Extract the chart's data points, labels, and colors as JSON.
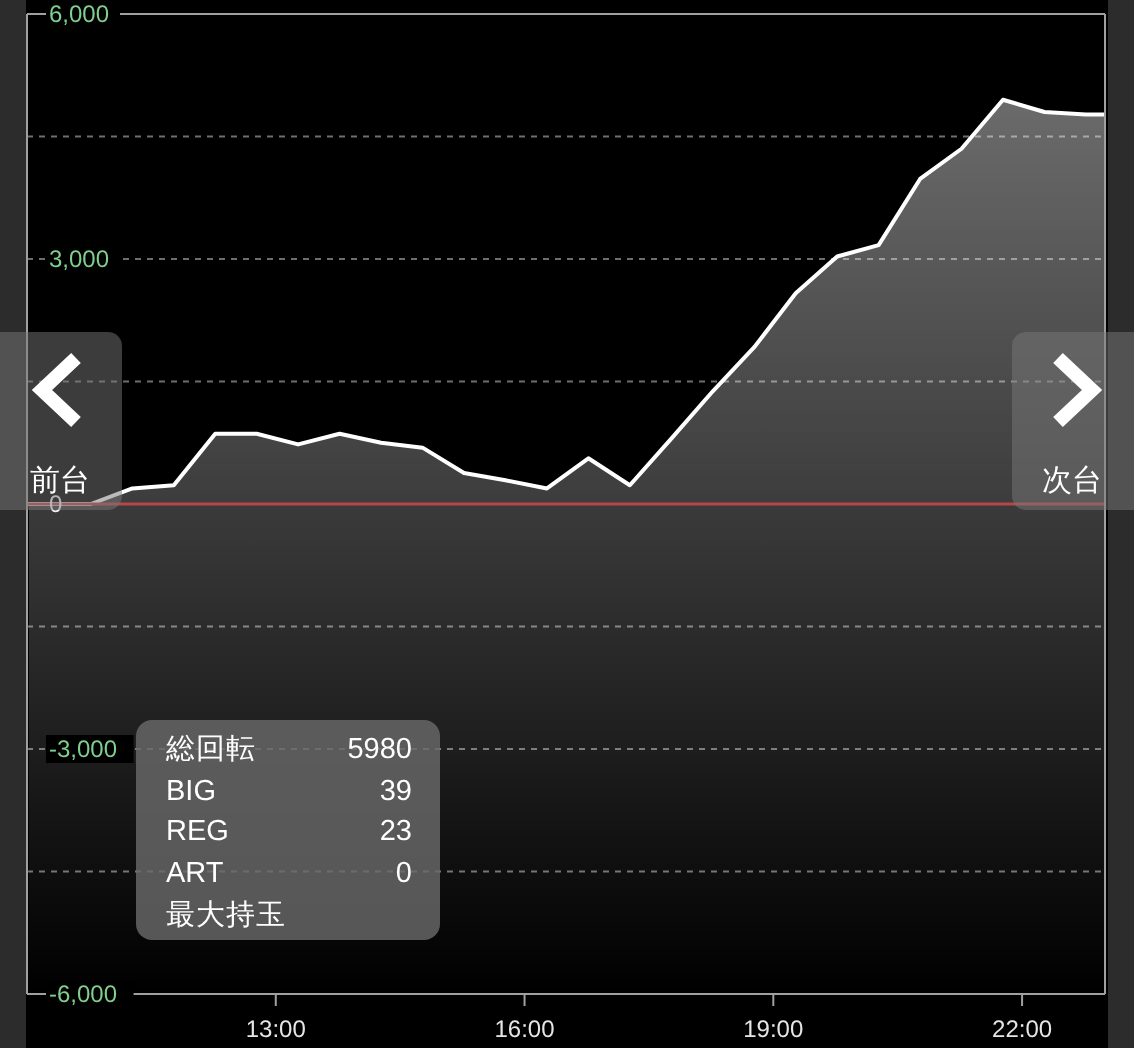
{
  "chart_data": {
    "type": "area",
    "x": [
      10,
      10.77,
      11.27,
      11.77,
      12.27,
      12.77,
      13.27,
      13.77,
      14.27,
      14.77,
      15.27,
      15.77,
      16.27,
      16.77,
      17.27,
      17.77,
      18.27,
      18.77,
      19.27,
      19.77,
      20.27,
      20.77,
      21.27,
      21.77,
      22.27,
      22.77,
      23
    ],
    "values": [
      0,
      0,
      190,
      230,
      860,
      860,
      730,
      860,
      750,
      690,
      380,
      290,
      190,
      560,
      230,
      800,
      1380,
      1920,
      2580,
      3030,
      3170,
      3980,
      4350,
      4950,
      4800,
      4770,
      4770
    ],
    "color": "#ffffff",
    "xlim": [
      10,
      23
    ],
    "xticks": [
      {
        "value": 13,
        "label": "13:00"
      },
      {
        "value": 16,
        "label": "16:00"
      },
      {
        "value": 19,
        "label": "19:00"
      },
      {
        "value": 22,
        "label": "22:00"
      }
    ],
    "ylim": [
      -6000,
      6000
    ],
    "yticks": [
      {
        "value": -6000,
        "label": "-6,000"
      },
      {
        "value": -4500,
        "label": null
      },
      {
        "value": -3000,
        "label": "-3,000"
      },
      {
        "value": -1500,
        "label": null
      },
      0,
      {
        "value": 1500,
        "label": null
      },
      {
        "value": 3000,
        "label": "3,000"
      },
      {
        "value": 4500,
        "label": null
      },
      {
        "value": 6000,
        "label": "6,000"
      }
    ],
    "grid": "y",
    "ref_lines": [
      {
        "axis": "y",
        "value": 0,
        "color": "#b5474b"
      }
    ],
    "annotations": [
      "前台",
      "次台",
      "総回転",
      "5980",
      "BIG",
      "39",
      "REG",
      "23",
      "ART",
      "0",
      "最大持玉"
    ]
  }
}
